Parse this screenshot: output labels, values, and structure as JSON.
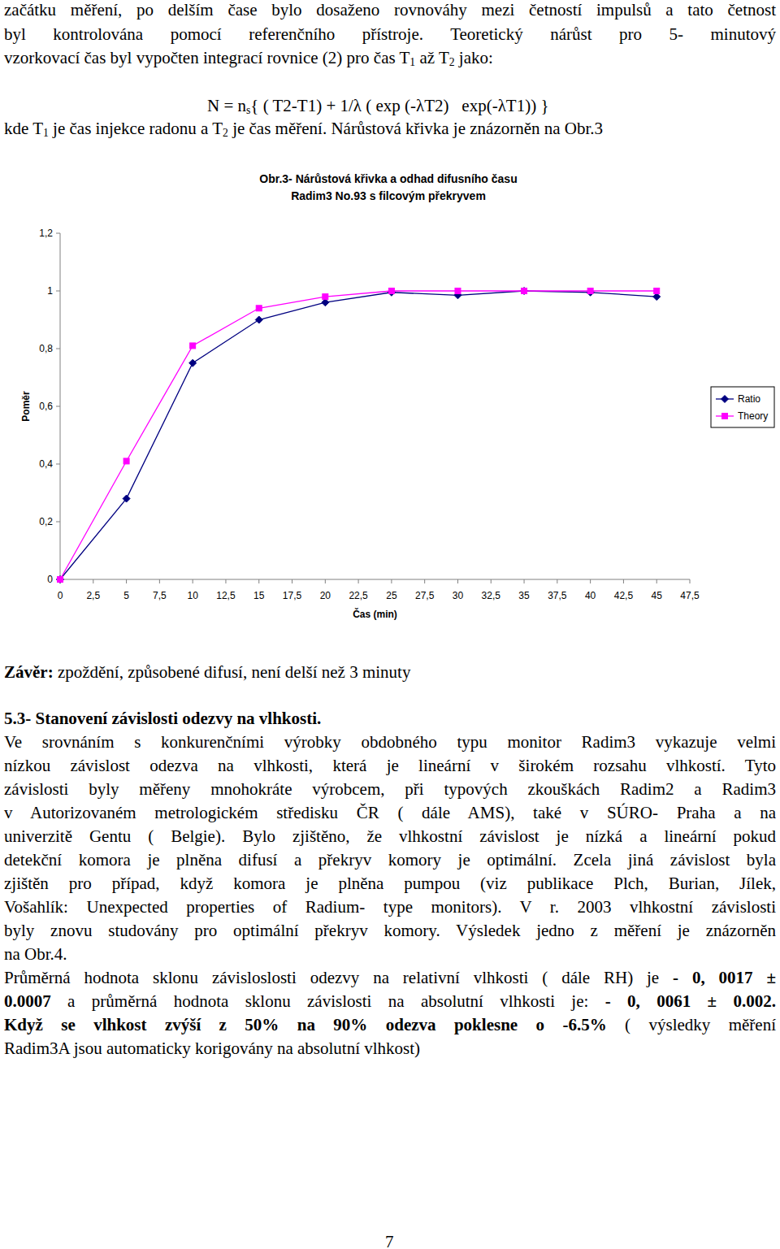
{
  "document": {
    "intro_lines": [
      [
        {
          "text": "začátku měření, po delším čase bylo dosaženo rovnováhy mezi četností impulsů a tato četnost"
        }
      ],
      [
        {
          "text": "byl kontrolována pomocí referenčního přístroje. Teoretický nárůst pro 5- minutový"
        }
      ],
      [
        {
          "text": "vzorkovací čas byl vypočten integrací rovnice (2) pro čas T"
        },
        {
          "text": "1",
          "sub": true
        },
        {
          "text": " až T"
        },
        {
          "text": "2",
          "sub": true
        },
        {
          "text": " jako:"
        }
      ]
    ],
    "formula": [
      {
        "text": "N = n"
      },
      {
        "text": "s",
        "sub": true
      },
      {
        "text": "{ ( T2-T1) + 1/λ ( exp (-λT2)   exp(-λT1)) }"
      }
    ],
    "after_formula": [
      {
        "text": "kde T"
      },
      {
        "text": "1",
        "sub": true
      },
      {
        "text": " je čas injekce radonu a T"
      },
      {
        "text": "2",
        "sub": true
      },
      {
        "text": " je čas měření. Nárůstová křivka je znázorněn na Obr.3"
      }
    ],
    "conclusion": [
      {
        "text": "Závěr:",
        "bold": true
      },
      {
        "text": " zpoždění, způsobené difusí, není delší než 3 minuty"
      }
    ],
    "section_heading": "5.3- Stanovení závislosti odezvy na vlhkosti.",
    "body_lines": [
      [
        {
          "text": "Ve srovnáním s konkurenčními výrobky obdobného typu monitor Radim3 vykazuje velmi"
        }
      ],
      [
        {
          "text": "nízkou závislost odezva na vlhkosti, která je lineární v širokém rozsahu vlhkostí. Tyto"
        }
      ],
      [
        {
          "text": "závislosti byly měřeny mnohokráte výrobcem, při typových zkouškách Radim2 a Radim3"
        }
      ],
      [
        {
          "text": "v Autorizovaném metrologickém středisku ČR ( dále AMS), také v SÚRO- Praha a na"
        }
      ],
      [
        {
          "text": "univerzitě Gentu ( Belgie). Bylo zjištěno, že vlhkostní závislost je nízká a lineární pokud"
        }
      ],
      [
        {
          "text": "detekční komora je plněna difusí a překryv komory je optimální. Zcela jiná závislost byla"
        }
      ],
      [
        {
          "text": "zjištěn pro případ, když komora je plněna pumpou (viz publikace Plch, Burian, Jílek,"
        }
      ],
      [
        {
          "text": "Vošahlík: Unexpected properties of Radium- type monitors). V r. 2003 vlhkostní závislosti"
        }
      ],
      [
        {
          "text": "byly znovu studovány pro optimální překryv komory. Výsledek jedno z měření je znázorněn"
        }
      ],
      [
        {
          "text": "na Obr.4."
        }
      ],
      [
        {
          "text": "Průměrná hodnota sklonu závisloslosti odezvy na relativní vlhkosti ( dále RH) je "
        },
        {
          "text": "- 0, 0017 ±",
          "bold": true
        }
      ],
      [
        {
          "text": "0.0007",
          "bold": true
        },
        {
          "text": "  a průměrná hodnota sklonu závislosti na absolutní vlhkosti je: "
        },
        {
          "text": "- 0, 0061 ± 0.002.",
          "bold": true
        }
      ],
      [
        {
          "text": "Když se vlhkost zvýší z 50% na  90% odezva poklesne o -6.5%",
          "bold": true
        },
        {
          "text": " ( výsledky měření"
        }
      ],
      [
        {
          "text": "Radim3A jsou automaticky korigovány na absolutní vlhkost)"
        }
      ]
    ],
    "page_number": "7"
  },
  "chart_data": {
    "type": "line",
    "title": "Obr.3- Nárůstová křivka a odhad difusního času",
    "subtitle": "Radim3 No.93 s filcovým překryvem",
    "x_label": "Čas (min)",
    "y_label": "Poměr",
    "x": [
      0,
      5,
      10,
      15,
      20,
      25,
      30,
      35,
      40,
      45
    ],
    "series": [
      {
        "name": "Ratio",
        "color": "#000080",
        "marker": "diamond",
        "values": [
          0,
          0.28,
          0.75,
          0.9,
          0.96,
          0.995,
          0.985,
          1.0,
          0.995,
          0.98
        ]
      },
      {
        "name": "Theory",
        "color": "#ff00ff",
        "marker": "square",
        "values": [
          0,
          0.41,
          0.81,
          0.94,
          0.98,
          1.0,
          1.0,
          1.0,
          1.0,
          1.0
        ]
      }
    ],
    "xlim": [
      0,
      47.5
    ],
    "xticks": [
      0,
      {
        "value": 2.5,
        "label": "2,5"
      },
      5,
      {
        "value": 7.5,
        "label": "7,5"
      },
      10,
      {
        "value": 12.5,
        "label": "12,5"
      },
      15,
      {
        "value": 17.5,
        "label": "17,5"
      },
      20,
      {
        "value": 22.5,
        "label": "22,5"
      },
      25,
      {
        "value": 27.5,
        "label": "27,5"
      },
      30,
      {
        "value": 32.5,
        "label": "32,5"
      },
      35,
      {
        "value": 37.5,
        "label": "37,5"
      },
      40,
      {
        "value": 42.5,
        "label": "42,5"
      },
      45,
      {
        "value": 47.5,
        "label": "47,5"
      }
    ],
    "ylim": [
      0,
      1.2
    ],
    "yticks": [
      0,
      {
        "value": 0.2,
        "label": "0,2"
      },
      {
        "value": 0.4,
        "label": "0,4"
      },
      {
        "value": 0.6,
        "label": "0,6"
      },
      {
        "value": 0.8,
        "label": "0,8"
      },
      1,
      {
        "value": 1.2,
        "label": "1,2"
      }
    ],
    "grid": false,
    "legend": "right"
  }
}
